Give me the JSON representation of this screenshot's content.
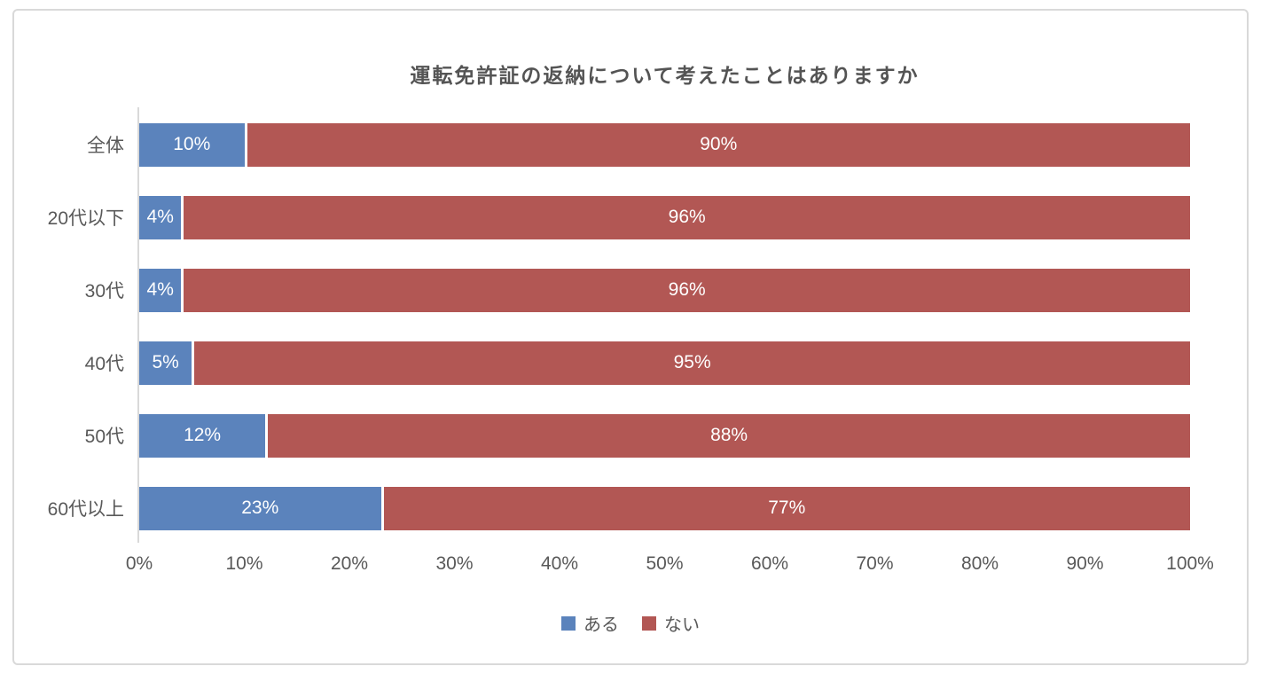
{
  "chart_data": {
    "type": "bar",
    "orientation": "horizontal",
    "stacked": true,
    "title": "運転免許証の返納について考えたことはありますか",
    "categories": [
      "全体",
      "20代以下",
      "30代",
      "40代",
      "50代",
      "60代以上"
    ],
    "series": [
      {
        "name": "ある",
        "color": "#5B83BC",
        "values": [
          10,
          4,
          4,
          5,
          12,
          23
        ]
      },
      {
        "name": "ない",
        "color": "#B25754",
        "values": [
          90,
          96,
          96,
          95,
          88,
          77
        ]
      }
    ],
    "value_label_suffix": "%",
    "x_ticks": [
      "0%",
      "10%",
      "20%",
      "30%",
      "40%",
      "50%",
      "60%",
      "70%",
      "80%",
      "90%",
      "100%"
    ],
    "xlim": [
      0,
      100
    ],
    "grid": false,
    "legend_position": "bottom",
    "axis_color": "#d9d9d9",
    "text_color": "#595959",
    "title_color": "#545454"
  }
}
